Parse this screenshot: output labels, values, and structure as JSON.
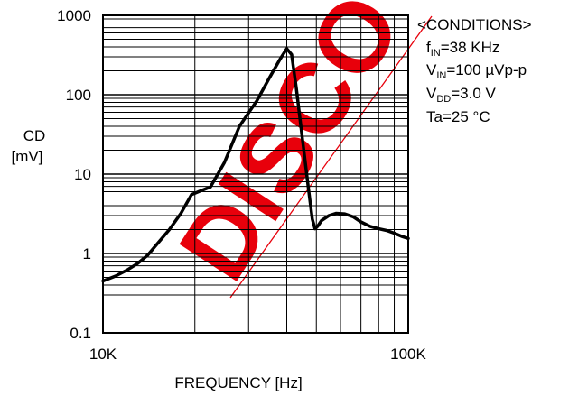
{
  "chart_data": {
    "type": "line",
    "xlabel": "FREQUENCY [Hz]",
    "ylabel_line1": "CD",
    "ylabel_line2": "[mV]",
    "x_scale": "log",
    "y_scale": "log",
    "xlim": [
      10000,
      100000
    ],
    "ylim": [
      0.1,
      1000
    ],
    "x_ticks": [
      {
        "value": 10000,
        "label": "10K"
      },
      {
        "value": 100000,
        "label": "100K"
      }
    ],
    "y_ticks": [
      {
        "value": 1000,
        "label": "1000"
      },
      {
        "value": 100,
        "label": "100"
      },
      {
        "value": 10,
        "label": "10"
      },
      {
        "value": 1,
        "label": "1"
      },
      {
        "value": 0.1,
        "label": "0.1"
      }
    ],
    "grid": true,
    "series": [
      {
        "x": [
          10000,
          11000,
          12000,
          13000,
          14000,
          15000,
          16500,
          18000,
          19500,
          21000,
          22500,
          25000,
          28000,
          32000,
          35000,
          38000,
          40000,
          41500,
          43000,
          45000,
          47000,
          48500,
          49500,
          50500,
          52000,
          55000,
          58000,
          62000,
          66000,
          70000,
          75000,
          80000,
          85000,
          90000,
          95000,
          100000
        ],
        "y": [
          0.45,
          0.52,
          0.62,
          0.75,
          0.95,
          1.3,
          2.0,
          3.2,
          5.5,
          6.2,
          6.9,
          14,
          40,
          85,
          160,
          280,
          380,
          320,
          120,
          28,
          7,
          2.7,
          2.05,
          2.2,
          2.6,
          3.0,
          3.2,
          3.15,
          2.9,
          2.5,
          2.2,
          2.05,
          1.95,
          1.8,
          1.65,
          1.55
        ]
      }
    ]
  },
  "conditions": {
    "title": "<CONDITIONS>",
    "line1": {
      "pre": "f",
      "sub": "IN",
      "post": "=38 KHz"
    },
    "line2": {
      "pre": "V",
      "sub": "IN",
      "post": "=100 µVp-p"
    },
    "line3": {
      "pre": "V",
      "sub": "DD",
      "post": "=3.0 V"
    },
    "line4": {
      "text": "Ta=25 °C"
    }
  },
  "watermark": {
    "text": "DISCO",
    "color": "#e8000b"
  }
}
